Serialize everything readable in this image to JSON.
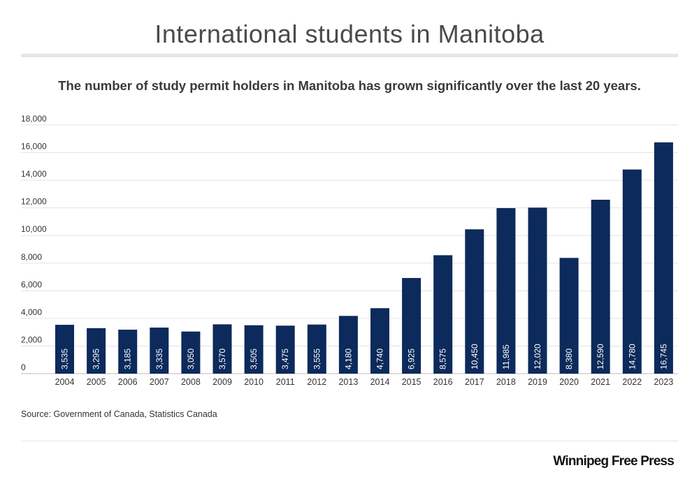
{
  "title": "International students in Manitoba",
  "subtitle": "The number of study permit holders in Manitoba has grown significantly over the last 20 years.",
  "source": "Source: Government of Canada, Statistics Canada",
  "brand": "Winnipeg Free Press",
  "colors": {
    "bar": "#0c2a5b",
    "bar_label": "#ffffff",
    "grid": "#e3e3e3",
    "axis_text": "#333333"
  },
  "chart_data": {
    "type": "bar",
    "categories": [
      "2004",
      "2005",
      "2006",
      "2007",
      "2008",
      "2009",
      "2010",
      "2011",
      "2012",
      "2013",
      "2014",
      "2015",
      "2016",
      "2017",
      "2018",
      "2019",
      "2020",
      "2021",
      "2022",
      "2023"
    ],
    "values": [
      3535,
      3295,
      3185,
      3335,
      3050,
      3570,
      3505,
      3475,
      3555,
      4180,
      4740,
      6925,
      8575,
      10450,
      11985,
      12020,
      8380,
      12590,
      14780,
      16745
    ],
    "value_labels": [
      "3,535",
      "3,295",
      "3,185",
      "3,335",
      "3,050",
      "3,570",
      "3,505",
      "3,475",
      "3,555",
      "4,180",
      "4,740",
      "6,925",
      "8,575",
      "10,450",
      "11,985",
      "12,020",
      "8,380",
      "12,590",
      "14,780",
      "16,745"
    ],
    "yticks": [
      0,
      2000,
      4000,
      6000,
      8000,
      10000,
      12000,
      14000,
      16000,
      18000
    ],
    "ytick_labels": [
      "0",
      "2,000",
      "4,000",
      "6,000",
      "8,000",
      "10,000",
      "12,000",
      "14,000",
      "16,000",
      "18,000"
    ],
    "ylim": [
      0,
      18000
    ],
    "grid": true,
    "xlabel": "",
    "ylabel": ""
  }
}
